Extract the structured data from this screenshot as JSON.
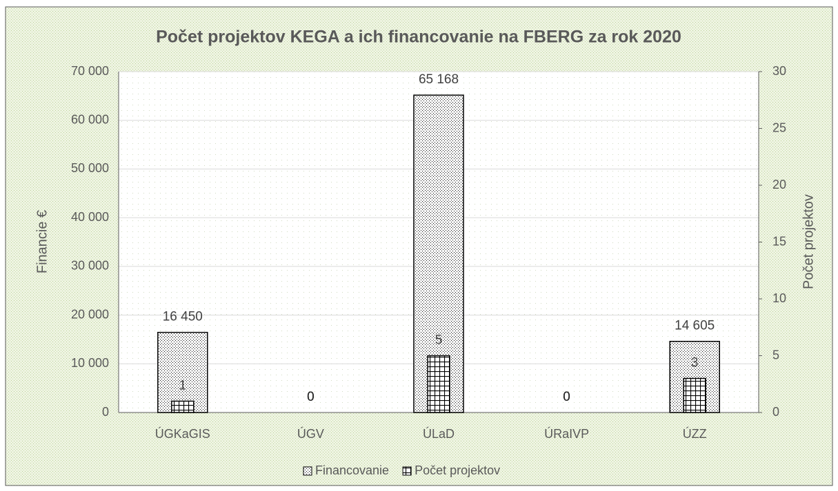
{
  "chart_data": {
    "type": "bar",
    "title": "Počet projektov KEGA a ich financovanie na FBERG za rok 2020",
    "categories": [
      "ÚGKaGIS",
      "ÚGV",
      "ÚLaD",
      "ÚRaIVP",
      "ÚZZ"
    ],
    "series": [
      {
        "name": "Financovanie",
        "color": "#000000",
        "values": [
          16450,
          0,
          65168,
          0,
          14605
        ],
        "value_labels": [
          "16 450",
          "0",
          "65 168",
          "0",
          "14 605"
        ]
      },
      {
        "name": "Počet projektov",
        "color": "#000000",
        "axis": "y2",
        "values": [
          1,
          0,
          5,
          0,
          3
        ]
      }
    ],
    "ylabel": "Financie €",
    "y2label": "Počet projektov",
    "ylim": [
      0,
      70000
    ],
    "yticks": [
      0,
      {
        "value": 10000,
        "label": "10 000"
      },
      {
        "value": 20000,
        "label": "20 000"
      },
      {
        "value": 30000,
        "label": "30 000"
      },
      {
        "value": 40000,
        "label": "40 000"
      },
      {
        "value": 50000,
        "label": "50 000"
      },
      {
        "value": 60000,
        "label": "60 000"
      },
      {
        "value": 70000,
        "label": "70 000"
      }
    ],
    "y2lim": [
      0,
      30
    ],
    "y2ticks": [
      0,
      5,
      10,
      15,
      20,
      25,
      30
    ],
    "grid": true,
    "legend": "bottom"
  }
}
